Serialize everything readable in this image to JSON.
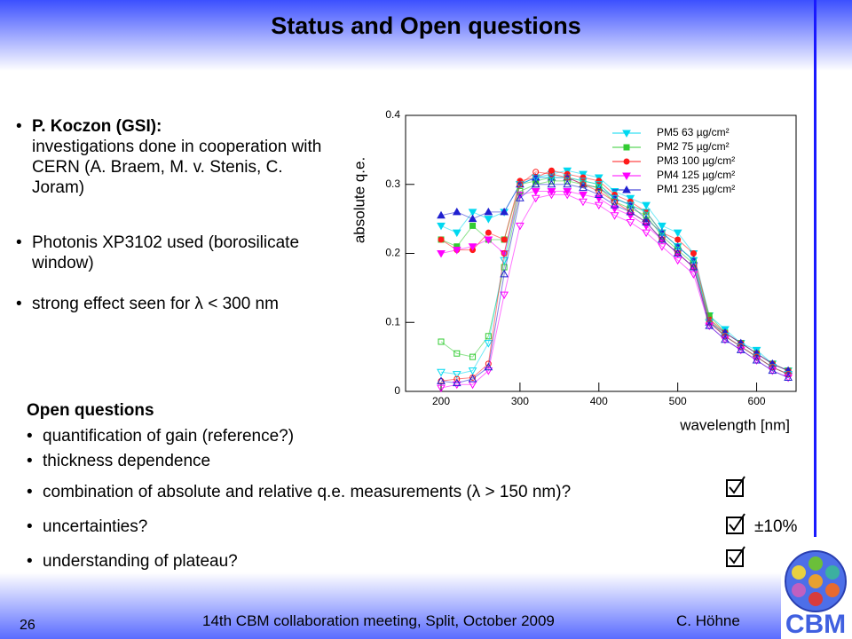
{
  "title": "Status and Open questions",
  "bullets": [
    {
      "head": "P. Koczon (GSI):",
      "text": "investigations done in cooperation with CERN (A. Braem, M. v. Stenis, C. Joram)"
    },
    {
      "text": "Photonis XP3102 used (borosilicate window)"
    },
    {
      "text": "strong effect seen for λ < 300 nm"
    }
  ],
  "open_questions": {
    "heading": "Open questions",
    "items": [
      "quantification of gain (reference?)",
      "thickness dependence",
      "combination of absolute and relative q.e. measurements (λ > 150 nm)?",
      "uncertainties?",
      "understanding of plateau?"
    ],
    "note": "±10%"
  },
  "footer": {
    "page": "26",
    "event": "14th CBM collaboration meeting, Split, October 2009",
    "author": "C. Höhne",
    "logo": "CBM"
  },
  "chart_data": {
    "type": "scatter",
    "y_label": "absolute q.e.",
    "x_label": "wavelength [nm]",
    "x": [
      200,
      220,
      240,
      260,
      280,
      300,
      320,
      340,
      360,
      380,
      400,
      420,
      440,
      460,
      480,
      500,
      520,
      540,
      560,
      580,
      600,
      620,
      640
    ],
    "xlim": [
      155,
      650
    ],
    "ylim": [
      0,
      0.4
    ],
    "xticks": [
      200,
      300,
      400,
      500,
      600
    ],
    "yticks": [
      0,
      0.1,
      0.2,
      0.3,
      0.4
    ],
    "series": [
      {
        "name": "PM5  63 µg/cm²",
        "color": "#00d8f0",
        "marker": "tri-down",
        "filled": true,
        "values": [
          0.24,
          0.23,
          0.26,
          0.25,
          0.26,
          0.3,
          0.31,
          0.315,
          0.32,
          0.315,
          0.31,
          0.29,
          0.28,
          0.27,
          0.24,
          0.23,
          0.2,
          0.11,
          0.09,
          0.07,
          0.06,
          0.04,
          0.03
        ]
      },
      {
        "name": "PM2  75 µg/cm²",
        "color": "#33cc33",
        "marker": "square",
        "filled": true,
        "values": [
          0.22,
          0.21,
          0.24,
          0.22,
          0.22,
          0.3,
          0.305,
          0.31,
          0.31,
          0.305,
          0.3,
          0.28,
          0.27,
          0.26,
          0.23,
          0.21,
          0.19,
          0.11,
          0.085,
          0.07,
          0.055,
          0.04,
          0.03
        ]
      },
      {
        "name": "PM3 100 µg/cm²",
        "color": "#ff1a1a",
        "marker": "circle",
        "filled": true,
        "values": [
          0.22,
          0.205,
          0.205,
          0.23,
          0.22,
          0.305,
          0.31,
          0.32,
          0.315,
          0.31,
          0.305,
          0.285,
          0.275,
          0.26,
          0.23,
          0.22,
          0.2,
          0.105,
          0.085,
          0.07,
          0.055,
          0.04,
          0.03
        ]
      },
      {
        "name": "PM4 125 µg/cm²",
        "color": "#ff00ff",
        "marker": "tri-down",
        "filled": true,
        "values": [
          0.2,
          0.205,
          0.21,
          0.22,
          0.2,
          0.285,
          0.29,
          0.29,
          0.29,
          0.285,
          0.28,
          0.265,
          0.255,
          0.24,
          0.22,
          0.2,
          0.18,
          0.1,
          0.08,
          0.065,
          0.05,
          0.035,
          0.025
        ]
      },
      {
        "name": "PM1 235 µg/cm²",
        "color": "#2020d0",
        "marker": "tri-up",
        "filled": true,
        "values": [
          0.255,
          0.26,
          0.25,
          0.26,
          0.26,
          0.3,
          0.31,
          0.31,
          0.31,
          0.3,
          0.295,
          0.28,
          0.27,
          0.25,
          0.23,
          0.21,
          0.19,
          0.1,
          0.085,
          0.07,
          0.055,
          0.04,
          0.03
        ]
      },
      {
        "color": "#33cc33",
        "marker": "square",
        "filled": false,
        "values": [
          0.072,
          0.055,
          0.05,
          0.08,
          0.18,
          0.29,
          0.3,
          0.305,
          0.305,
          0.3,
          0.295,
          0.275,
          0.265,
          0.255,
          0.225,
          0.205,
          0.185,
          0.105,
          0.08,
          0.065,
          0.05,
          0.035,
          0.025
        ]
      },
      {
        "color": "#00d8f0",
        "marker": "tri-down",
        "filled": false,
        "values": [
          0.028,
          0.025,
          0.03,
          0.07,
          0.19,
          0.3,
          0.31,
          0.31,
          0.31,
          0.305,
          0.3,
          0.28,
          0.27,
          0.26,
          0.23,
          0.21,
          0.19,
          0.1,
          0.08,
          0.065,
          0.05,
          0.035,
          0.025
        ]
      },
      {
        "color": "#ff1a1a",
        "marker": "circle",
        "filled": false,
        "values": [
          0.015,
          0.018,
          0.02,
          0.04,
          0.2,
          0.3,
          0.318,
          0.315,
          0.31,
          0.3,
          0.29,
          0.275,
          0.26,
          0.245,
          0.22,
          0.2,
          0.18,
          0.1,
          0.08,
          0.065,
          0.05,
          0.035,
          0.025
        ]
      },
      {
        "color": "#ff00ff",
        "marker": "tri-down",
        "filled": false,
        "values": [
          0.005,
          0.01,
          0.01,
          0.03,
          0.14,
          0.24,
          0.28,
          0.285,
          0.285,
          0.275,
          0.27,
          0.255,
          0.245,
          0.23,
          0.21,
          0.19,
          0.17,
          0.095,
          0.075,
          0.06,
          0.045,
          0.03,
          0.02
        ]
      },
      {
        "color": "#2020d0",
        "marker": "tri-up",
        "filled": false,
        "values": [
          0.015,
          0.012,
          0.018,
          0.035,
          0.17,
          0.28,
          0.3,
          0.3,
          0.3,
          0.295,
          0.285,
          0.27,
          0.26,
          0.245,
          0.22,
          0.2,
          0.18,
          0.095,
          0.075,
          0.06,
          0.045,
          0.03,
          0.02
        ]
      }
    ]
  }
}
